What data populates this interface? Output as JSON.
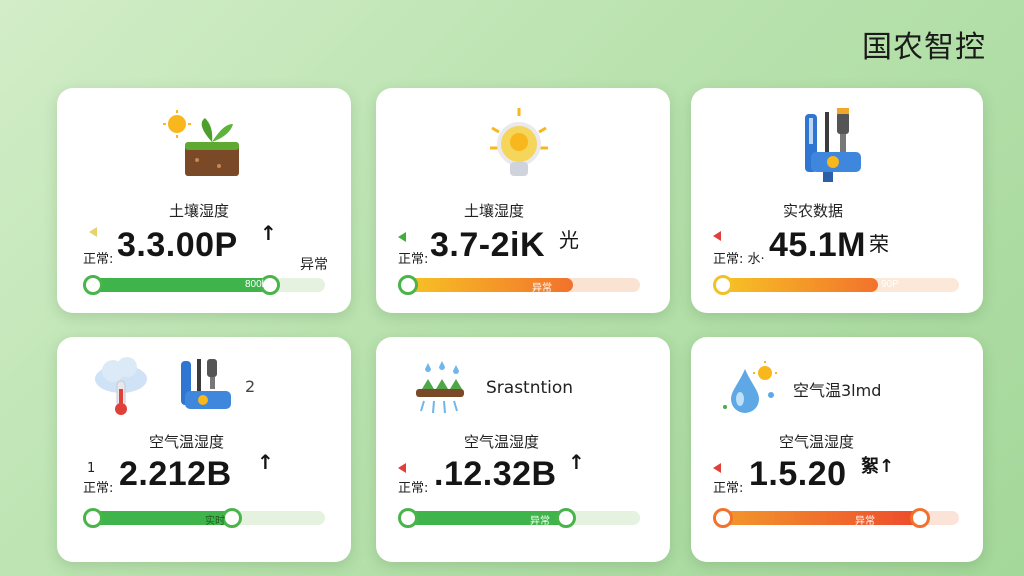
{
  "brand": "国农智控",
  "cards": [
    {
      "title": "土壤湿度",
      "status": "正常:",
      "value": "3.3.00P",
      "arrow": "↑",
      "side_label": "异常",
      "bar_label": "800k",
      "progress": 0.78
    },
    {
      "title": "土壤湿度",
      "status": "正常:",
      "value": "3.7-2iK",
      "arrow": "光",
      "bar_label": "异常",
      "progress": 0.72
    },
    {
      "title": "实农数据",
      "status": "正常: 水·",
      "value": "45.1M",
      "arrow": "荣",
      "bar_label": "90P",
      "progress": 0.67
    },
    {
      "title": "空气温湿度",
      "status": "正常:",
      "value": "2.212B",
      "arrow": "↑",
      "prefix": "1",
      "extra": "2",
      "bar_label": "实时",
      "progress": 0.62
    },
    {
      "title": "空气温湿度",
      "header_label": "Srastntion",
      "status": "正常:",
      "value": ".12.32B",
      "arrow": "↑",
      "bar_label": "异常",
      "progress": 0.7
    },
    {
      "title": "空气温湿度",
      "header_label": "空气温3lmd",
      "status": "正常:",
      "value": "1.5.20",
      "arrow": "絮↑",
      "bar_label": "异常",
      "progress": 0.85
    }
  ],
  "colors": {
    "green": "#3fb44a",
    "orange_start": "#f7c624",
    "orange_end": "#f2722c",
    "red_start": "#f29a2c",
    "red_end": "#ee4a2c"
  }
}
